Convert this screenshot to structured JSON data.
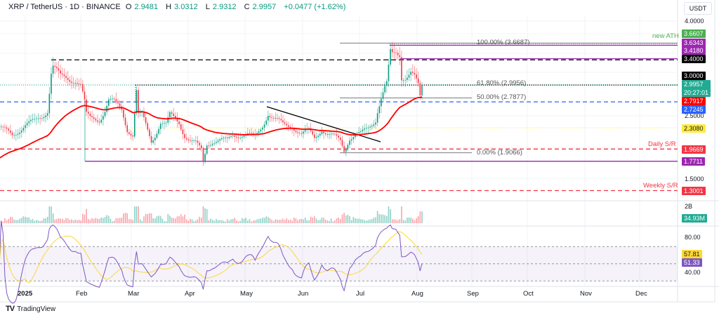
{
  "header": {
    "symbol": "XRP / TetherUS · 1D · BINANCE",
    "open_label": "O",
    "open": "2.9481",
    "high_label": "H",
    "high": "3.0312",
    "low_label": "L",
    "low": "2.9312",
    "close_label": "C",
    "close": "2.9957",
    "change": "+0.0477 (+1.62%)"
  },
  "currency": "USDT",
  "price_axis": {
    "ticks": [
      "4.0000",
      "2.5000",
      "1.5000"
    ],
    "tags": {
      "ath": "3.6607",
      "purple_high": "3.6343",
      "purple_mid": "3.4180",
      "black_res": "3.4000",
      "round": "3.0000",
      "last": "2.9957",
      "countdown": "20:27:01",
      "ema": "2.7917",
      "blue": "2.7245",
      "yellow": "2.3080",
      "daily_sr": "1.9669",
      "purple_low": "1.7711",
      "weekly_sr": "1.3001"
    }
  },
  "volume_axis": {
    "tick": "2B",
    "last": "34.93M"
  },
  "rsi_axis": {
    "ticks": [
      "80.00",
      "40.00"
    ],
    "ma": "57.81",
    "rsi": "51.33"
  },
  "annotations": {
    "new_ath": "new ATH",
    "daily_sr": "Daily S/R",
    "weekly_sr": "Weekly S/R",
    "fib_100": "100.00% (3.6687)",
    "fib_618": "61.80% (2.9956)",
    "fib_50": "50.00% (2.7877)",
    "fib_0": "0.00% (1.9066)"
  },
  "time_axis": [
    "2025",
    "Feb",
    "Mar",
    "Apr",
    "May",
    "Jun",
    "Jul",
    "Aug",
    "Sep",
    "Oct",
    "Nov",
    "Dec"
  ],
  "brand": "TradingView",
  "colors": {
    "up": "#089981",
    "down": "#f23645",
    "ema": "#ff0000",
    "ath": "#4caf50",
    "purple": "#9c27b0",
    "blue": "#2962ff",
    "yellow": "#ffeb3b",
    "rsi": "#7e57c2",
    "rsi_ma": "#fdd835"
  },
  "chart_data": {
    "type": "candlestick",
    "symbol": "XRP/USDT",
    "interval": "1D",
    "ylim": [
      1.2,
      4.0
    ],
    "approx_closes": [
      [
        "2024-12-18",
        2.3
      ],
      [
        "2024-12-25",
        2.2
      ],
      [
        "2025-01-01",
        2.35
      ],
      [
        "2025-01-06",
        2.4
      ],
      [
        "2025-01-10",
        2.5
      ],
      [
        "2025-01-13",
        2.6
      ],
      [
        "2025-01-15",
        3.2
      ],
      [
        "2025-01-16",
        3.3
      ],
      [
        "2025-01-18",
        3.2
      ],
      [
        "2025-01-20",
        3.1
      ],
      [
        "2025-01-25",
        3.1
      ],
      [
        "2025-01-28",
        3.1
      ],
      [
        "2025-01-31",
        3.0
      ],
      [
        "2025-02-02",
        2.7
      ],
      [
        "2025-02-03",
        2.5
      ],
      [
        "2025-02-05",
        2.45
      ],
      [
        "2025-02-10",
        2.45
      ],
      [
        "2025-02-13",
        2.6
      ],
      [
        "2025-02-15",
        2.75
      ],
      [
        "2025-02-18",
        2.7
      ],
      [
        "2025-02-22",
        2.6
      ],
      [
        "2025-02-25",
        2.3
      ],
      [
        "2025-02-28",
        2.2
      ],
      [
        "2025-03-02",
        2.9
      ],
      [
        "2025-03-03",
        2.5
      ],
      [
        "2025-03-05",
        2.5
      ],
      [
        "2025-03-10",
        2.1
      ],
      [
        "2025-03-12",
        2.2
      ],
      [
        "2025-03-15",
        2.4
      ],
      [
        "2025-03-18",
        2.35
      ],
      [
        "2025-03-20",
        2.5
      ],
      [
        "2025-03-25",
        2.4
      ],
      [
        "2025-03-28",
        2.2
      ],
      [
        "2025-03-31",
        2.1
      ],
      [
        "2025-04-03",
        2.05
      ],
      [
        "2025-04-06",
        1.95
      ],
      [
        "2025-04-07",
        1.75
      ],
      [
        "2025-04-09",
        2.05
      ],
      [
        "2025-04-12",
        2.1
      ],
      [
        "2025-04-15",
        2.1
      ],
      [
        "2025-04-20",
        2.1
      ],
      [
        "2025-04-23",
        2.2
      ],
      [
        "2025-04-26",
        2.2
      ],
      [
        "2025-04-30",
        2.2
      ],
      [
        "2025-05-05",
        2.15
      ],
      [
        "2025-05-09",
        2.35
      ],
      [
        "2025-05-12",
        2.55
      ],
      [
        "2025-05-15",
        2.45
      ],
      [
        "2025-05-20",
        2.35
      ],
      [
        "2025-05-25",
        2.35
      ],
      [
        "2025-05-30",
        2.2
      ],
      [
        "2025-06-03",
        2.25
      ],
      [
        "2025-06-06",
        2.15
      ],
      [
        "2025-06-10",
        2.3
      ],
      [
        "2025-06-13",
        2.2
      ],
      [
        "2025-06-17",
        2.15
      ],
      [
        "2025-06-20",
        2.1
      ],
      [
        "2025-06-22",
        1.95
      ],
      [
        "2025-06-25",
        2.15
      ],
      [
        "2025-06-28",
        2.2
      ],
      [
        "2025-07-01",
        2.2
      ],
      [
        "2025-07-05",
        2.3
      ],
      [
        "2025-07-09",
        2.45
      ],
      [
        "2025-07-10",
        2.6
      ],
      [
        "2025-07-12",
        2.8
      ],
      [
        "2025-07-14",
        2.95
      ],
      [
        "2025-07-15",
        3.0
      ],
      [
        "2025-07-17",
        3.5
      ],
      [
        "2025-07-18",
        3.45
      ],
      [
        "2025-07-20",
        3.5
      ],
      [
        "2025-07-22",
        3.5
      ],
      [
        "2025-07-23",
        3.15
      ],
      [
        "2025-07-25",
        3.15
      ],
      [
        "2025-07-28",
        3.2
      ],
      [
        "2025-07-30",
        3.1
      ],
      [
        "2025-08-01",
        2.95
      ],
      [
        "2025-08-02",
        2.77
      ],
      [
        "2025-08-03",
        2.9957
      ]
    ],
    "horizontal_levels": [
      3.6607,
      3.6343,
      3.418,
      3.4,
      3.0,
      2.9956,
      2.7877,
      2.7245,
      2.308,
      1.9669,
      1.9066,
      1.7711,
      1.3001
    ],
    "rsi_levels": [
      70,
      50,
      30
    ]
  }
}
